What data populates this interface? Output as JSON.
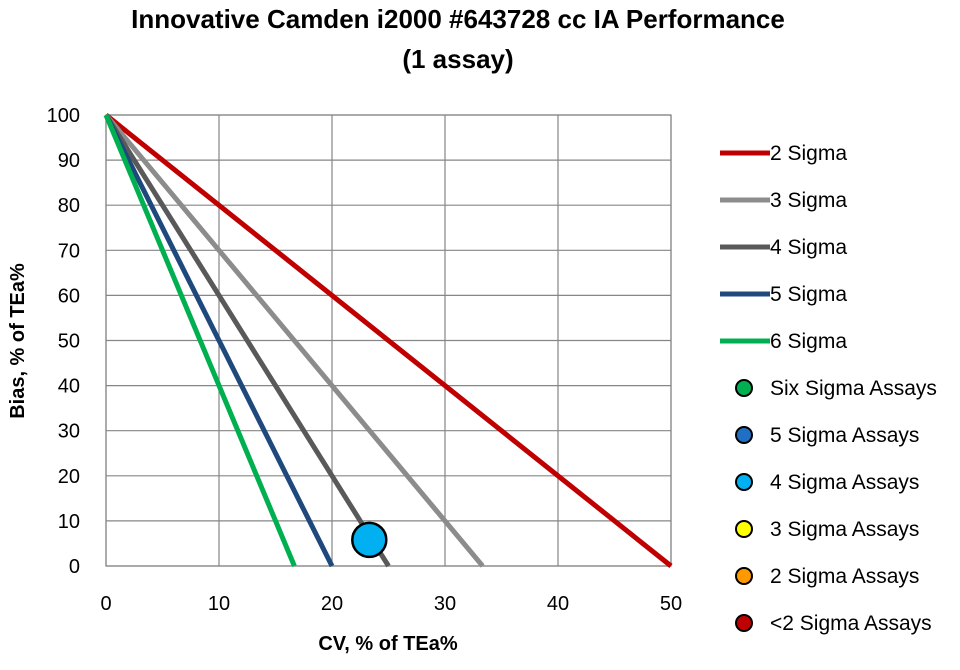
{
  "chart_data": {
    "type": "scatter",
    "title": "Innovative Camden i2000 #643728 cc IA Performance",
    "subtitle": "(1 assay)",
    "xlabel": "CV, % of TEa%",
    "ylabel": "Bias, % of TEa%",
    "xlim": [
      0,
      50
    ],
    "ylim": [
      0,
      100
    ],
    "xticks": [
      0,
      10,
      20,
      30,
      40,
      50
    ],
    "yticks": [
      0,
      10,
      20,
      30,
      40,
      50,
      60,
      70,
      80,
      90,
      100
    ],
    "grid": true,
    "legend_position": "right",
    "sigma_lines": [
      {
        "name": "2 Sigma",
        "color": "#c00000",
        "points": [
          [
            0,
            100
          ],
          [
            50,
            0
          ]
        ]
      },
      {
        "name": "3 Sigma",
        "color": "#8c8c8c",
        "points": [
          [
            0,
            100
          ],
          [
            33.33,
            0
          ]
        ]
      },
      {
        "name": "4 Sigma",
        "color": "#595959",
        "points": [
          [
            0,
            100
          ],
          [
            25,
            0
          ]
        ]
      },
      {
        "name": "5 Sigma",
        "color": "#1f497d",
        "points": [
          [
            0,
            100
          ],
          [
            20,
            0
          ]
        ]
      },
      {
        "name": "6 Sigma",
        "color": "#00b050",
        "points": [
          [
            0,
            100
          ],
          [
            16.67,
            0
          ]
        ]
      }
    ],
    "marker_series": [
      {
        "name": "Six Sigma Assays",
        "color": "#00b050",
        "points": []
      },
      {
        "name": "5 Sigma Assays",
        "color": "#1f6fc5",
        "points": []
      },
      {
        "name": "4 Sigma Assays",
        "color": "#00b0f0",
        "points": [
          [
            23.3,
            5.8
          ]
        ]
      },
      {
        "name": "3 Sigma Assays",
        "color": "#ffff00",
        "points": []
      },
      {
        "name": "2 Sigma Assays",
        "color": "#ff9900",
        "points": []
      },
      {
        "name": "<2 Sigma Assays",
        "color": "#c00000",
        "points": []
      }
    ]
  }
}
